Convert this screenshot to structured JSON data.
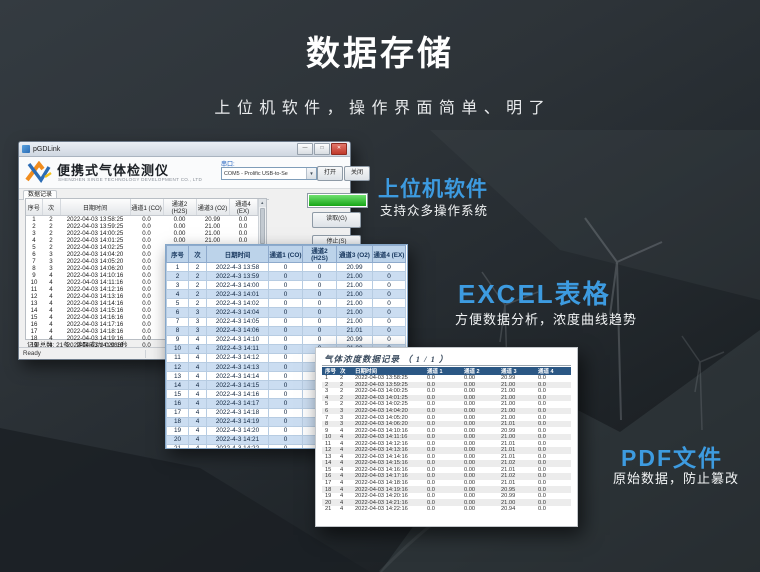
{
  "accent_color": "#3d9be0",
  "header": {
    "title": "数据存储",
    "subtitle": "上 位 机 软 件 ， 操 作 界 面 简 单 、 明 了"
  },
  "captions": [
    {
      "title": "上位机软件",
      "desc": "支持众多操作系统"
    },
    {
      "title": "EXCEL表格",
      "desc": "方便数据分析，浓度曲线趋势"
    },
    {
      "title": "PDF文件",
      "desc": "原始数据，防止篡改"
    }
  ],
  "pgdlink": {
    "window_title": "pGDLink",
    "minimize": "—",
    "maximize": "□",
    "close": "✕",
    "app_title": "便携式气体检测仪",
    "company": "SHENZHEN SINGE TECHNOLOGY DEVELOPMENT CO., LTD",
    "serial_label": "串口:",
    "serial_value": "COM5 - Prolific USB-to-Se",
    "combo_arrow": "▼",
    "open_button": "打开",
    "close_button": "关闭",
    "tab": "数据记录",
    "read_button": "读取(G)",
    "stop_button": "停止(S)",
    "scroll_up": "▲",
    "scroll_down": "▼",
    "summary": "记录总数: 21条，读取成功! 0.936秒",
    "status_left": "Ready",
    "status_mid": "1",
    "status_right": "0.031s, S",
    "columns": [
      "序号",
      "次",
      "日期时间",
      "通道1 (CO)",
      "通道2 (H2S)",
      "通道3 (O2)",
      "通道4 (EX)"
    ],
    "rows": [
      [
        "1",
        "2",
        "2022-04-03 13:58:25",
        "0.0",
        "0.00",
        "20.99",
        "0.0"
      ],
      [
        "2",
        "2",
        "2022-04-03 13:59:25",
        "0.0",
        "0.00",
        "21.00",
        "0.0"
      ],
      [
        "3",
        "2",
        "2022-04-03 14:00:25",
        "0.0",
        "0.00",
        "21.00",
        "0.0"
      ],
      [
        "4",
        "2",
        "2022-04-03 14:01:25",
        "0.0",
        "0.00",
        "21.00",
        "0.0"
      ],
      [
        "5",
        "2",
        "2022-04-03 14:02:25",
        "0.0",
        "0.00",
        "21.00",
        "0.0"
      ],
      [
        "6",
        "3",
        "2022-04-03 14:04:20",
        "0.0",
        "0.00",
        "21.00",
        "0.0"
      ],
      [
        "7",
        "3",
        "2022-04-03 14:05:20",
        "0.0",
        "0.00",
        "21.00",
        "0.0"
      ],
      [
        "8",
        "3",
        "2022-04-03 14:06:20",
        "0.0",
        "0.00",
        "21.01",
        "0.0"
      ],
      [
        "9",
        "4",
        "2022-04-03 14:10:16",
        "0.0",
        "0.00",
        "20.99",
        "0.0"
      ],
      [
        "10",
        "4",
        "2022-04-03 14:11:16",
        "0.0",
        "0.00",
        "21.00",
        "0.0"
      ],
      [
        "11",
        "4",
        "2022-04-03 14:12:16",
        "0.0",
        "0.00",
        "21.01",
        "0.0"
      ],
      [
        "12",
        "4",
        "2022-04-03 14:13:16",
        "0.0",
        "0.00",
        "21.01",
        "0.0"
      ],
      [
        "13",
        "4",
        "2022-04-03 14:14:16",
        "0.0",
        "0.00",
        "21.01",
        "0.0"
      ],
      [
        "14",
        "4",
        "2022-04-03 14:15:16",
        "0.0",
        "0.00",
        "21.02",
        "0.0"
      ],
      [
        "15",
        "4",
        "2022-04-03 14:16:16",
        "0.0",
        "0.00",
        "21.01",
        "0.0"
      ],
      [
        "16",
        "4",
        "2022-04-03 14:17:16",
        "0.0",
        "0.00",
        "21.02",
        "0.0"
      ],
      [
        "17",
        "4",
        "2022-04-03 14:18:16",
        "0.0",
        "0.00",
        "21.01",
        "0.0"
      ],
      [
        "18",
        "4",
        "2022-04-03 14:19:16",
        "0.0",
        "0.00",
        "20.95",
        "0.0"
      ],
      [
        "19",
        "4",
        "2022-04-03 14:20:16",
        "0.0",
        "0.00",
        "20.99",
        "0.0"
      ]
    ]
  },
  "excel": {
    "columns": [
      "序号",
      "次",
      "日期时间",
      "通道1 (CO)",
      "通道2 (H2S)",
      "通道3 (O2)",
      "通道4 (EX)"
    ],
    "rows": [
      [
        "1",
        "2",
        "2022-4-3 13:58",
        "0",
        "0",
        "20.99",
        "0"
      ],
      [
        "2",
        "2",
        "2022-4-3 13:59",
        "0",
        "0",
        "21.00",
        "0"
      ],
      [
        "3",
        "2",
        "2022-4-3 14:00",
        "0",
        "0",
        "21.00",
        "0"
      ],
      [
        "4",
        "2",
        "2022-4-3 14:01",
        "0",
        "0",
        "21.00",
        "0"
      ],
      [
        "5",
        "2",
        "2022-4-3 14:02",
        "0",
        "0",
        "21.00",
        "0"
      ],
      [
        "6",
        "3",
        "2022-4-3 14:04",
        "0",
        "0",
        "21.00",
        "0"
      ],
      [
        "7",
        "3",
        "2022-4-3 14:05",
        "0",
        "0",
        "21.00",
        "0"
      ],
      [
        "8",
        "3",
        "2022-4-3 14:06",
        "0",
        "0",
        "21.01",
        "0"
      ],
      [
        "9",
        "4",
        "2022-4-3 14:10",
        "0",
        "0",
        "20.99",
        "0"
      ],
      [
        "10",
        "4",
        "2022-4-3 14:11",
        "0",
        "0",
        "21.00",
        "0"
      ],
      [
        "11",
        "4",
        "2022-4-3 14:12",
        "0",
        "0",
        "21.01",
        "0"
      ],
      [
        "12",
        "4",
        "2022-4-3 14:13",
        "0",
        "0",
        "21.01",
        "0"
      ],
      [
        "13",
        "4",
        "2022-4-3 14:14",
        "0",
        "0",
        "21.01",
        "0"
      ],
      [
        "14",
        "4",
        "2022-4-3 14:15",
        "0",
        "0",
        "21.02",
        "0"
      ],
      [
        "15",
        "4",
        "2022-4-3 14:16",
        "0",
        "0",
        "21.01",
        "0"
      ],
      [
        "16",
        "4",
        "2022-4-3 14:17",
        "0",
        "0",
        "21.02",
        "0"
      ],
      [
        "17",
        "4",
        "2022-4-3 14:18",
        "0",
        "0",
        "21.01",
        "0"
      ],
      [
        "18",
        "4",
        "2022-4-3 14:19",
        "0",
        "0",
        "20.95",
        "0"
      ],
      [
        "19",
        "4",
        "2022-4-3 14:20",
        "0",
        "0",
        "20.99",
        "0"
      ],
      [
        "20",
        "4",
        "2022-4-3 14:21",
        "0",
        "0",
        "21.00",
        "0"
      ],
      [
        "21",
        "4",
        "2022-4-3 14:22",
        "0",
        "0",
        "20.94",
        "0"
      ]
    ]
  },
  "pdf": {
    "title": "气体浓度数据记录",
    "page_info": "（ 1 / 1 ）",
    "columns": [
      "序号",
      "次",
      "日期时间",
      "通道 1",
      "通道 2",
      "通道 3",
      "通道 4"
    ],
    "rows": [
      [
        "1",
        "2",
        "2022-04-03 13:58:25",
        "0.0",
        "0.00",
        "20.99",
        "0.0"
      ],
      [
        "2",
        "2",
        "2022-04-03 13:59:25",
        "0.0",
        "0.00",
        "21.00",
        "0.0"
      ],
      [
        "3",
        "2",
        "2022-04-03 14:00:25",
        "0.0",
        "0.00",
        "21.00",
        "0.0"
      ],
      [
        "4",
        "2",
        "2022-04-03 14:01:25",
        "0.0",
        "0.00",
        "21.00",
        "0.0"
      ],
      [
        "5",
        "2",
        "2022-04-03 14:02:25",
        "0.0",
        "0.00",
        "21.00",
        "0.0"
      ],
      [
        "6",
        "3",
        "2022-04-03 14:04:20",
        "0.0",
        "0.00",
        "21.00",
        "0.0"
      ],
      [
        "7",
        "3",
        "2022-04-03 14:05:20",
        "0.0",
        "0.00",
        "21.00",
        "0.0"
      ],
      [
        "8",
        "3",
        "2022-04-03 14:06:20",
        "0.0",
        "0.00",
        "21.01",
        "0.0"
      ],
      [
        "9",
        "4",
        "2022-04-03 14:10:16",
        "0.0",
        "0.00",
        "20.99",
        "0.0"
      ],
      [
        "10",
        "4",
        "2022-04-03 14:11:16",
        "0.0",
        "0.00",
        "21.00",
        "0.0"
      ],
      [
        "11",
        "4",
        "2022-04-03 14:12:16",
        "0.0",
        "0.00",
        "21.01",
        "0.0"
      ],
      [
        "12",
        "4",
        "2022-04-03 14:13:16",
        "0.0",
        "0.00",
        "21.01",
        "0.0"
      ],
      [
        "13",
        "4",
        "2022-04-03 14:14:16",
        "0.0",
        "0.00",
        "21.01",
        "0.0"
      ],
      [
        "14",
        "4",
        "2022-04-03 14:15:16",
        "0.0",
        "0.00",
        "21.02",
        "0.0"
      ],
      [
        "15",
        "4",
        "2022-04-03 14:16:16",
        "0.0",
        "0.00",
        "21.01",
        "0.0"
      ],
      [
        "16",
        "4",
        "2022-04-03 14:17:16",
        "0.0",
        "0.00",
        "21.02",
        "0.0"
      ],
      [
        "17",
        "4",
        "2022-04-03 14:18:16",
        "0.0",
        "0.00",
        "21.01",
        "0.0"
      ],
      [
        "18",
        "4",
        "2022-04-03 14:19:16",
        "0.0",
        "0.00",
        "20.95",
        "0.0"
      ],
      [
        "19",
        "4",
        "2022-04-03 14:20:16",
        "0.0",
        "0.00",
        "20.99",
        "0.0"
      ],
      [
        "20",
        "4",
        "2022-04-03 14:21:16",
        "0.0",
        "0.00",
        "21.00",
        "0.0"
      ],
      [
        "21",
        "4",
        "2022-04-03 14:22:16",
        "0.0",
        "0.00",
        "20.94",
        "0.0"
      ]
    ]
  }
}
